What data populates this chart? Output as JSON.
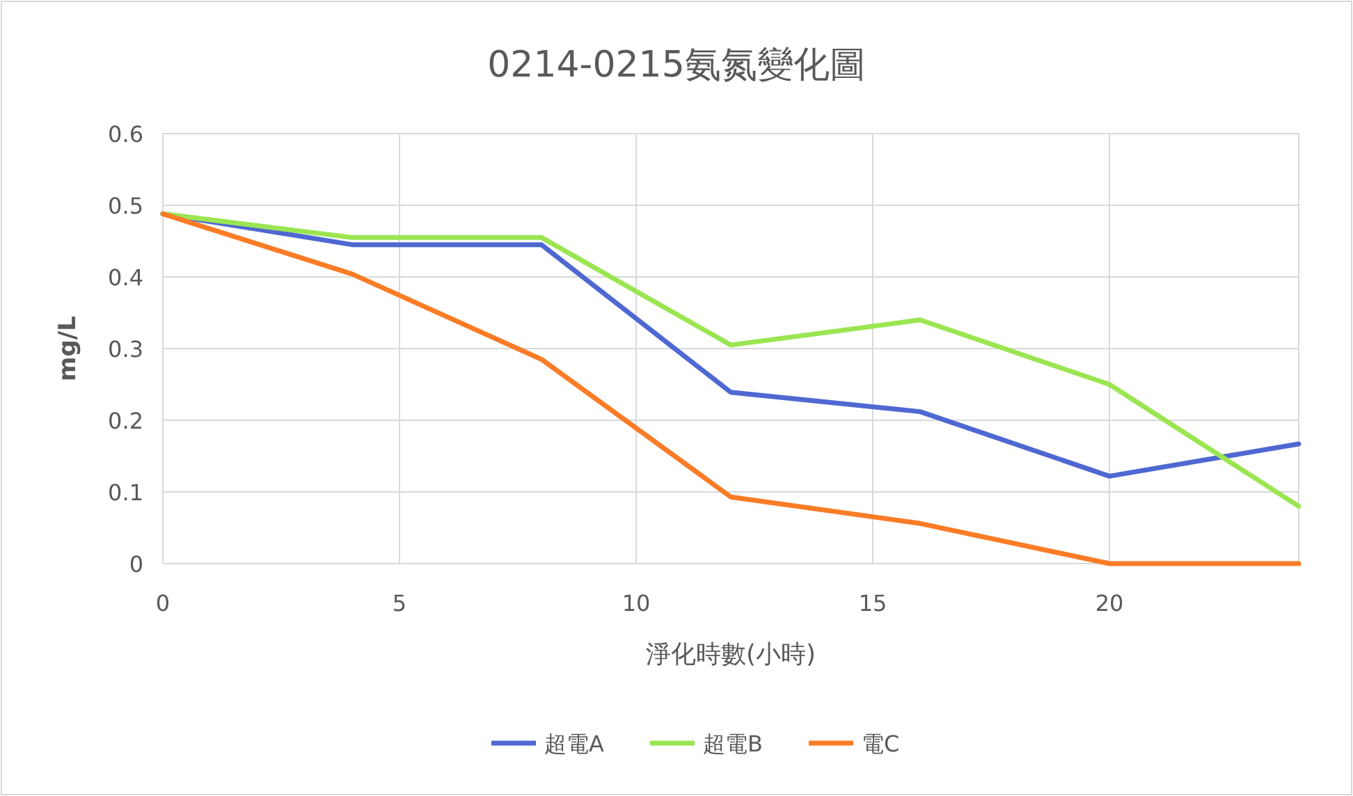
{
  "chart_data": {
    "type": "line",
    "title": "0214-0215氨氮變化圖",
    "xlabel": "淨化時數(小時)",
    "ylabel": "mg/L",
    "x": [
      0,
      4,
      8,
      12,
      16,
      20,
      24
    ],
    "series": [
      {
        "name": "超電A",
        "color": "#4f68d1",
        "values": [
          0.488,
          0.445,
          0.445,
          0.239,
          0.212,
          0.122,
          0.167
        ]
      },
      {
        "name": "超電B",
        "color": "#9be552",
        "values": [
          0.488,
          0.455,
          0.455,
          0.305,
          0.34,
          0.25,
          0.08
        ]
      },
      {
        "name": "電C",
        "color": "#fb7c26",
        "values": [
          0.488,
          0.404,
          0.285,
          0.093,
          0.056,
          0,
          0
        ]
      }
    ],
    "xlim": [
      0,
      24
    ],
    "xticks": [
      0,
      5,
      10,
      15,
      20
    ],
    "ylim": [
      0,
      0.6
    ],
    "yticks": [
      0,
      0.1,
      0.2,
      0.3,
      0.4,
      0.5,
      0.6
    ],
    "grid": true,
    "legend": "bottom",
    "marker": "none",
    "line_style": "solid"
  }
}
